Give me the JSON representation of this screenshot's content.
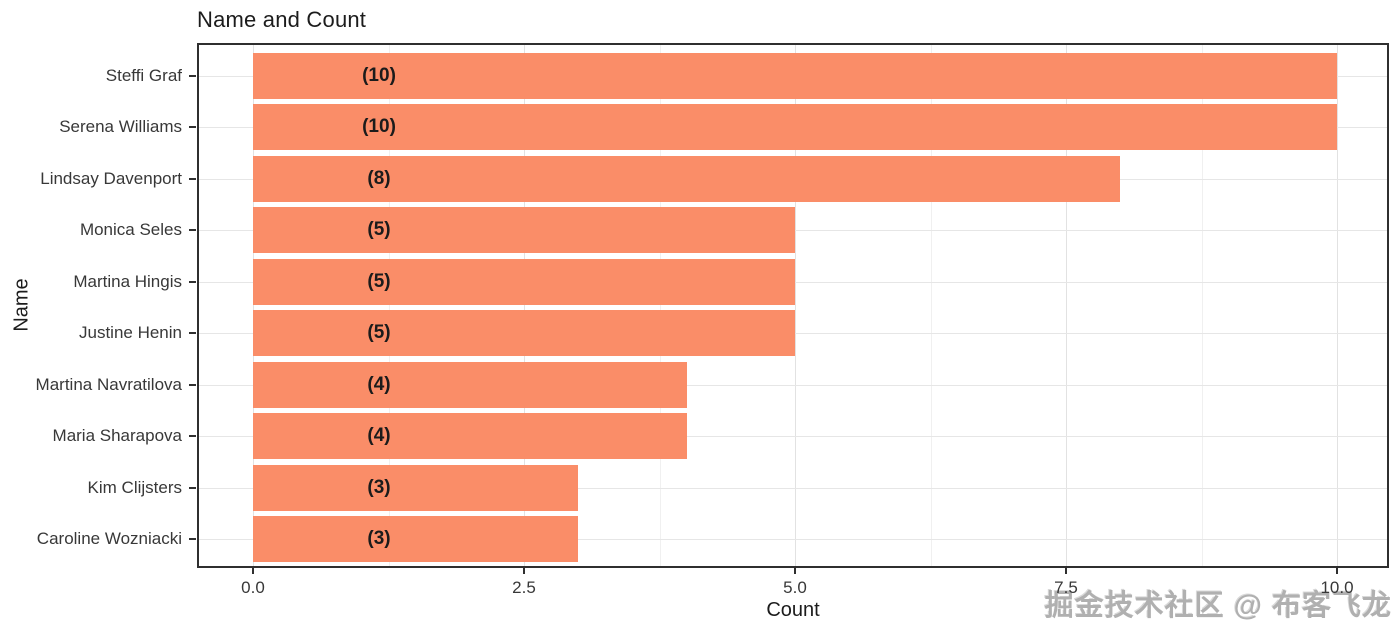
{
  "title": "Name and Count",
  "watermark": "掘金技术社区 @ 布客飞龙",
  "chart_data": {
    "type": "bar",
    "orientation": "horizontal",
    "title": "Name and Count",
    "xlabel": "Count",
    "ylabel": "Name",
    "categories": [
      "Steffi Graf",
      "Serena Williams",
      "Lindsay Davenport",
      "Monica Seles",
      "Martina Hingis",
      "Justine Henin",
      "Martina Navratilova",
      "Maria Sharapova",
      "Kim Clijsters",
      "Caroline Wozniacki"
    ],
    "values": [
      10,
      10,
      8,
      5,
      5,
      5,
      4,
      4,
      3,
      3
    ],
    "bar_labels": [
      "(10)",
      "(10)",
      "(8)",
      "(5)",
      "(5)",
      "(5)",
      "(4)",
      "(4)",
      "(3)",
      "(3)"
    ],
    "x_ticks": [
      0,
      2.5,
      5,
      7.5,
      10
    ],
    "x_tick_labels": [
      "0.0",
      "2.5",
      "5.0",
      "7.5",
      "10.0"
    ],
    "xlim": [
      -0.5,
      10.5
    ],
    "grid": true,
    "legend": "none",
    "bar_color": "#FA8D68"
  },
  "colors": {
    "bar": "#FA8D68",
    "grid_major": "#e2e2e2",
    "grid_minor": "#f0f0f0",
    "panel_border": "#2f2f2f",
    "axis_text": "#383838",
    "title_text": "#1c1c1c",
    "watermark": "#b0b0b0"
  }
}
